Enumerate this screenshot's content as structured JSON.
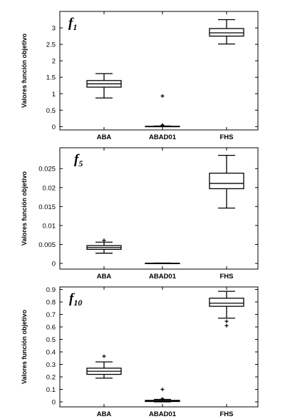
{
  "chart_data": [
    {
      "type": "box",
      "title": "f",
      "title_subscript": "1",
      "ylabel": "Valores función objetivo",
      "categories": [
        "ABA",
        "ABAD01",
        "FHS"
      ],
      "ylim": [
        -0.1,
        3.5
      ],
      "yticks": [
        0,
        0.5,
        1,
        1.5,
        2,
        2.5,
        3
      ],
      "ytick_labels": [
        "0",
        "0.5",
        "1",
        "1.5",
        "2",
        "2.5",
        "3"
      ],
      "boxes": [
        {
          "whisker_low": 0.87,
          "q1": 1.2,
          "median": 1.3,
          "q3": 1.4,
          "whisker_high": 1.61,
          "outliers": []
        },
        {
          "whisker_low": 0.0,
          "q1": 0.0,
          "median": 0.0,
          "q3": 0.01,
          "whisker_high": 0.02,
          "outliers": [
            0.93,
            0.05,
            0.03
          ]
        },
        {
          "whisker_low": 2.51,
          "q1": 2.75,
          "median": 2.85,
          "q3": 2.98,
          "whisker_high": 3.25,
          "outliers": []
        }
      ]
    },
    {
      "type": "box",
      "title": "f",
      "title_subscript": "5",
      "ylabel": "Valores función objetivo",
      "categories": [
        "ABA",
        "ABAD01",
        "FHS"
      ],
      "ylim": [
        -0.0015,
        0.0305
      ],
      "yticks": [
        0,
        0.005,
        0.01,
        0.015,
        0.02,
        0.025
      ],
      "ytick_labels": [
        "0",
        "0.005",
        "0.01",
        "0.015",
        "0.02",
        "0.025"
      ],
      "boxes": [
        {
          "whisker_low": 0.0027,
          "q1": 0.0037,
          "median": 0.0042,
          "q3": 0.0047,
          "whisker_high": 0.0056,
          "outliers": [
            0.0061
          ]
        },
        {
          "whisker_low": 0.0,
          "q1": 0.0,
          "median": 0.0,
          "q3": 5e-05,
          "whisker_high": 0.0001,
          "outliers": []
        },
        {
          "whisker_low": 0.0146,
          "q1": 0.0197,
          "median": 0.0211,
          "q3": 0.0238,
          "whisker_high": 0.0285,
          "outliers": []
        }
      ]
    },
    {
      "type": "box",
      "title": "f",
      "title_subscript": "10",
      "ylabel": "Valores función objetivo",
      "categories": [
        "ABA",
        "ABAD01",
        "FHS"
      ],
      "ylim": [
        -0.04,
        0.92
      ],
      "yticks": [
        0,
        0.1,
        0.2,
        0.3,
        0.4,
        0.5,
        0.6,
        0.7,
        0.8,
        0.9
      ],
      "ytick_labels": [
        "0",
        "0.1",
        "0.2",
        "0.3",
        "0.4",
        "0.5",
        "0.6",
        "0.7",
        "0.8",
        "0.9"
      ],
      "boxes": [
        {
          "whisker_low": 0.19,
          "q1": 0.22,
          "median": 0.245,
          "q3": 0.27,
          "whisker_high": 0.32,
          "outliers": [
            0.365
          ]
        },
        {
          "whisker_low": 0.0,
          "q1": 0.003,
          "median": 0.006,
          "q3": 0.012,
          "whisker_high": 0.02,
          "outliers": [
            0.1,
            0.025
          ]
        },
        {
          "whisker_low": 0.67,
          "q1": 0.765,
          "median": 0.79,
          "q3": 0.83,
          "whisker_high": 0.885,
          "outliers": [
            0.645,
            0.61
          ]
        }
      ]
    }
  ]
}
